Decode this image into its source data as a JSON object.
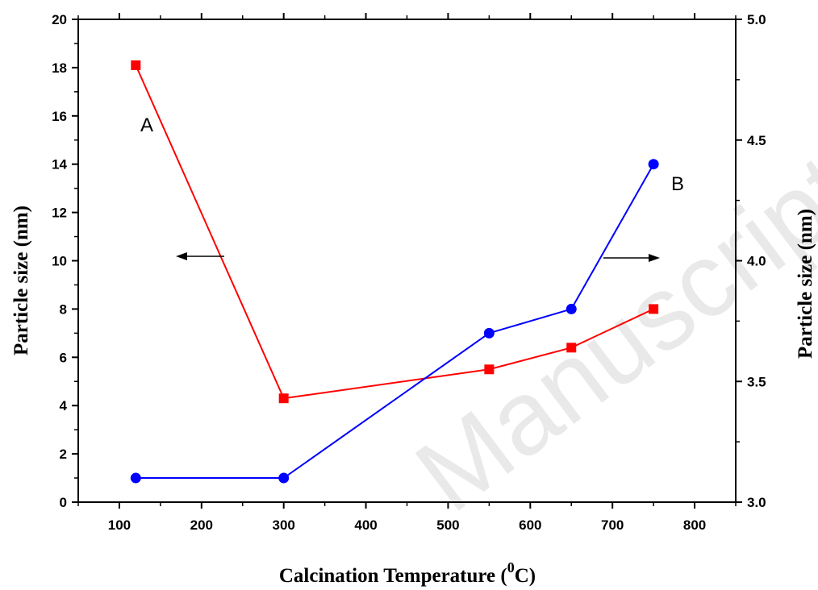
{
  "chart_data": {
    "type": "line",
    "xlabel": "Calcination Temperature (",
    "xlabel_sup": "0",
    "xlabel_end": "C)",
    "ylabel_left": "Particle size (nm)",
    "ylabel_right": "Particle size (nm)",
    "xlim": [
      50,
      850
    ],
    "ylim_left": [
      0,
      20
    ],
    "ylim_right": [
      3.0,
      5.0
    ],
    "x_ticks": [
      100,
      200,
      300,
      400,
      500,
      600,
      700,
      800
    ],
    "y_left_ticks": [
      0,
      2,
      4,
      6,
      8,
      10,
      12,
      14,
      16,
      18,
      20
    ],
    "y_right_ticks": [
      "3.0",
      "3.5",
      "4.0",
      "4.5",
      "5.0"
    ],
    "series": [
      {
        "name": "A",
        "axis": "left",
        "color": "#ff0000",
        "marker": "square",
        "x": [
          120,
          300,
          550,
          650,
          750
        ],
        "y": [
          18.1,
          4.3,
          5.5,
          6.4,
          8.0
        ]
      },
      {
        "name": "B",
        "axis": "right",
        "color": "#0000ff",
        "marker": "circle",
        "x": [
          120,
          300,
          550,
          650,
          750
        ],
        "y": [
          3.1,
          3.1,
          3.7,
          3.8,
          4.4
        ]
      }
    ],
    "annotations": [
      {
        "text": "A",
        "series": "A"
      },
      {
        "text": "B",
        "series": "B"
      }
    ],
    "grid": false,
    "watermark": "Manuscript"
  }
}
